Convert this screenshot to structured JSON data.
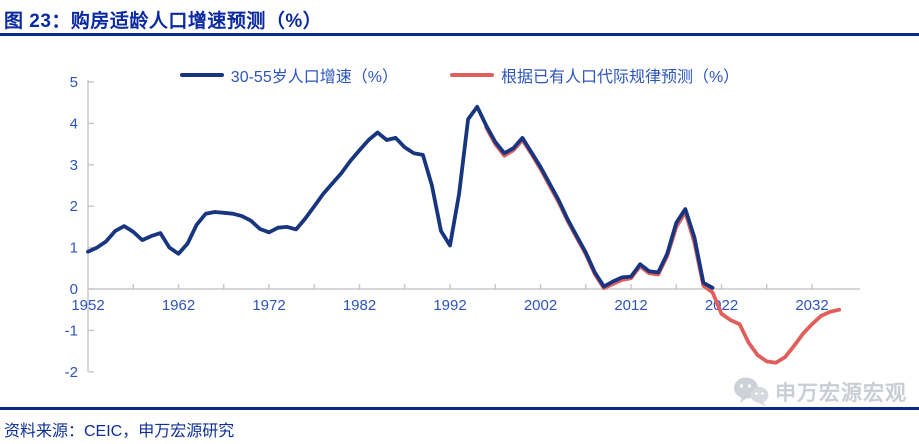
{
  "header": {
    "figure_title": "图 23：购房适龄人口增速预测（%）"
  },
  "footer": {
    "source": "资料来源：CEIC，申万宏源研究"
  },
  "watermark": {
    "text": "申万宏源宏观",
    "icon": "wechat-icon"
  },
  "colors": {
    "title_navy": "#0C2AA0",
    "rule_navy": "#0A2B85",
    "actual_line": "#17367F",
    "forecast_line": "#E05E5C",
    "axis_text_blue": "#2C55BE",
    "axis_line_gray": "#C8C8C8",
    "watermark_gray": "#C9CED6"
  },
  "chart_data": {
    "type": "line",
    "title": "图 23：购房适龄人口增速预测（%）",
    "xlabel": "",
    "ylabel": "",
    "x_range": [
      1952,
      2035
    ],
    "ylim": [
      -2,
      5
    ],
    "y_ticks": [
      5,
      4,
      3,
      2,
      1,
      0,
      -1,
      -2
    ],
    "x_tick_labels": [
      "1952",
      "1962",
      "1972",
      "1982",
      "1992",
      "2002",
      "2012",
      "2022",
      "2032"
    ],
    "x_minor_tick_step": 5,
    "grid": false,
    "legend_position": "top-center",
    "series": [
      {
        "name": "30-55岁人口增速（%）",
        "color": "#17367F",
        "start_year": 1952,
        "end_year": 2021,
        "values": [
          0.9,
          1.0,
          1.15,
          1.4,
          1.52,
          1.38,
          1.18,
          1.28,
          1.35,
          1.0,
          0.85,
          1.1,
          1.55,
          1.82,
          1.86,
          1.84,
          1.82,
          1.76,
          1.65,
          1.45,
          1.37,
          1.48,
          1.5,
          1.44,
          1.7,
          2.0,
          2.3,
          2.55,
          2.8,
          3.1,
          3.35,
          3.6,
          3.78,
          3.6,
          3.65,
          3.42,
          3.28,
          3.24,
          2.5,
          1.4,
          1.05,
          2.3,
          4.1,
          4.4,
          3.95,
          3.55,
          3.28,
          3.4,
          3.65,
          3.3,
          2.95,
          2.55,
          2.15,
          1.68,
          1.28,
          0.88,
          0.4,
          0.06,
          0.18,
          0.28,
          0.3,
          0.6,
          0.43,
          0.4,
          0.85,
          1.6,
          1.93,
          1.25,
          0.15,
          0.03
        ]
      },
      {
        "name": "根据已有人口代际规律预测（%）",
        "color": "#E05E5C",
        "start_year": 1996,
        "end_year": 2035,
        "values": [
          3.9,
          3.5,
          3.22,
          3.35,
          3.6,
          3.26,
          2.9,
          2.5,
          2.1,
          1.64,
          1.24,
          0.84,
          0.36,
          0.02,
          0.12,
          0.22,
          0.26,
          0.55,
          0.38,
          0.35,
          0.8,
          1.5,
          1.86,
          1.12,
          0.08,
          -0.08,
          -0.6,
          -0.75,
          -0.85,
          -1.3,
          -1.6,
          -1.75,
          -1.78,
          -1.65,
          -1.38,
          -1.08,
          -0.85,
          -0.65,
          -0.55,
          -0.5
        ]
      }
    ]
  }
}
